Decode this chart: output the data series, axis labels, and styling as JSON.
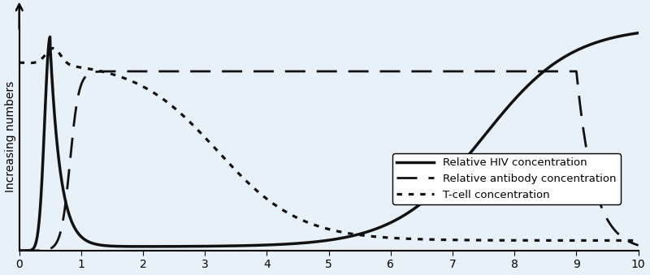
{
  "title": "",
  "xlabel": "",
  "ylabel": "Increasing numbers",
  "xlim": [
    0,
    10
  ],
  "ylim": [
    0,
    1.12
  ],
  "xticks": [
    0,
    1,
    2,
    3,
    4,
    5,
    6,
    7,
    8,
    9,
    10
  ],
  "background_color": "#e8f0f8",
  "legend_labels": [
    "Relative HIV concentration",
    "Relative antibody concentration",
    "T-cell concentration"
  ],
  "line_color": "#111111",
  "line_width": 2.0
}
